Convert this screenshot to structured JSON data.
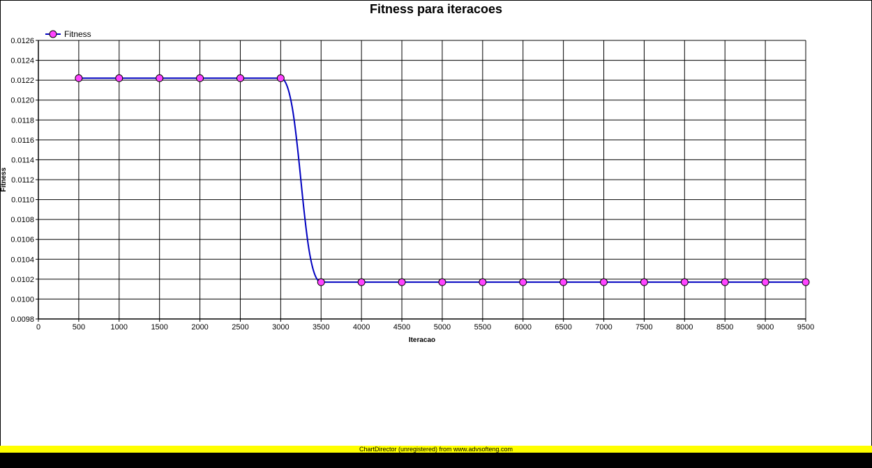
{
  "chart_data": {
    "type": "line",
    "title": "Fitness para iteracoes",
    "xlabel": "Iteracao",
    "ylabel": "Fitness",
    "x": [
      500,
      1000,
      1500,
      2000,
      2500,
      3000,
      3500,
      4000,
      4500,
      5000,
      5500,
      6000,
      6500,
      7000,
      7500,
      8000,
      8500,
      9000,
      9500
    ],
    "series": [
      {
        "name": "Fitness",
        "values": [
          0.01222,
          0.01222,
          0.01222,
          0.01222,
          0.01222,
          0.01222,
          0.01017,
          0.01017,
          0.01017,
          0.01017,
          0.01017,
          0.01017,
          0.01017,
          0.01017,
          0.01017,
          0.01017,
          0.01017,
          0.01017,
          0.01017
        ],
        "line_color": "#0000c0",
        "marker_color": "#ff44ff"
      }
    ],
    "xlim": [
      0,
      9500
    ],
    "ylim": [
      0.0098,
      0.0126
    ],
    "x_ticks": [
      "0",
      "500",
      "1000",
      "1500",
      "2000",
      "2500",
      "3000",
      "3500",
      "4000",
      "4500",
      "5000",
      "5500",
      "6000",
      "6500",
      "7000",
      "7500",
      "8000",
      "8500",
      "9000",
      "9500"
    ],
    "y_ticks": [
      "0.0098",
      "0.0100",
      "0.0102",
      "0.0104",
      "0.0106",
      "0.0108",
      "0.0110",
      "0.0112",
      "0.0114",
      "0.0116",
      "0.0118",
      "0.0120",
      "0.0122",
      "0.0124",
      "0.0126"
    ],
    "grid": true,
    "legend_position": "top-left"
  },
  "footer": {
    "text": "ChartDirector (unregistered) from www.advsofteng.com",
    "bar_color": "#ffff00"
  }
}
